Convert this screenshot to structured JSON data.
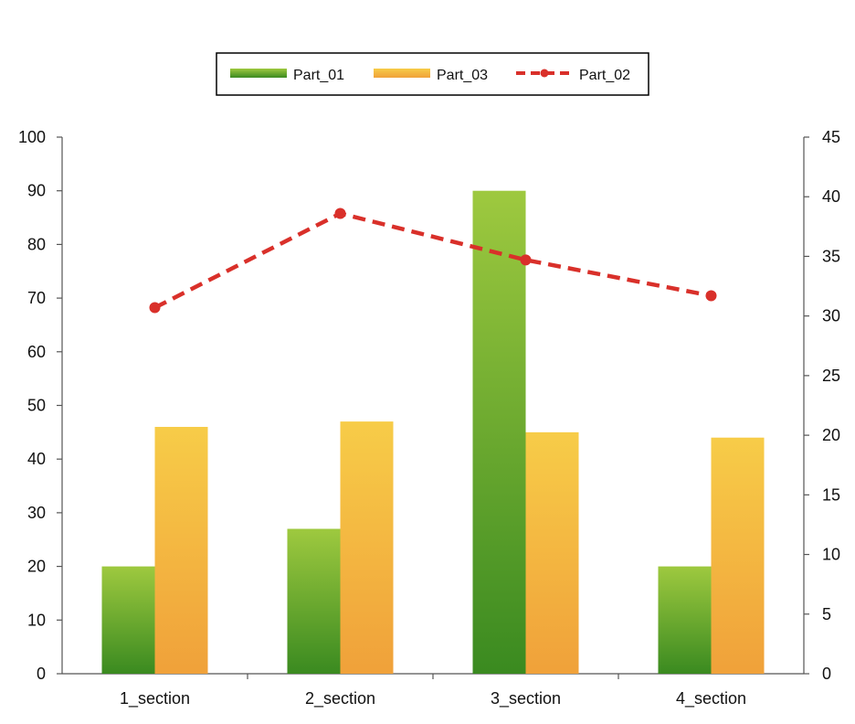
{
  "chart_data": {
    "type": "bar",
    "categories": [
      "1_section",
      "2_section",
      "3_section",
      "4_section"
    ],
    "series": [
      {
        "name": "Part_01",
        "axis": "left",
        "kind": "bar",
        "values": [
          20,
          27,
          90,
          20
        ],
        "color_top": "#9ec93f",
        "color_bottom": "#3a8a20"
      },
      {
        "name": "Part_03",
        "axis": "left",
        "kind": "bar",
        "values": [
          46,
          47,
          45,
          44
        ],
        "color_top": "#f7cc48",
        "color_bottom": "#f0a13a"
      },
      {
        "name": "Part_02",
        "axis": "right",
        "kind": "line",
        "style": "dashed",
        "values": [
          30.7,
          38.6,
          34.7,
          31.7
        ],
        "color": "#d9302a"
      }
    ],
    "y_left": {
      "min": 0,
      "max": 100,
      "step": 10,
      "ticks": [
        "0",
        "10",
        "20",
        "30",
        "40",
        "50",
        "60",
        "70",
        "80",
        "90",
        "100"
      ]
    },
    "y_right": {
      "min": 0,
      "max": 45,
      "step": 5,
      "ticks": [
        "0",
        "5",
        "10",
        "15",
        "20",
        "25",
        "30",
        "35",
        "40",
        "45"
      ]
    },
    "legend_order": [
      "Part_01",
      "Part_03",
      "Part_02"
    ],
    "legend_position": "top-center",
    "grid": false
  }
}
